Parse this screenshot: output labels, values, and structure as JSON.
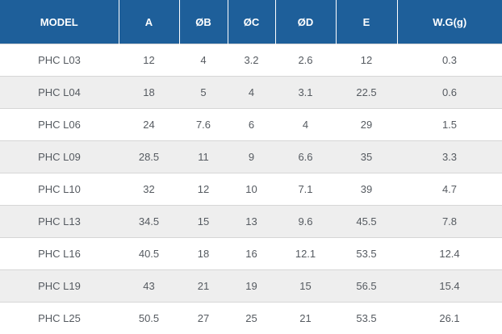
{
  "table": {
    "headers": [
      "MODEL",
      "A",
      "ØB",
      "ØC",
      "ØD",
      "E",
      "W.G(g)"
    ],
    "rows": [
      [
        "PHC L03",
        "12",
        "4",
        "3.2",
        "2.6",
        "12",
        "0.3"
      ],
      [
        "PHC L04",
        "18",
        "5",
        "4",
        "3.1",
        "22.5",
        "0.6"
      ],
      [
        "PHC L06",
        "24",
        "7.6",
        "6",
        "4",
        "29",
        "1.5"
      ],
      [
        "PHC L09",
        "28.5",
        "11",
        "9",
        "6.6",
        "35",
        "3.3"
      ],
      [
        "PHC L10",
        "32",
        "12",
        "10",
        "7.1",
        "39",
        "4.7"
      ],
      [
        "PHC L13",
        "34.5",
        "15",
        "13",
        "9.6",
        "45.5",
        "7.8"
      ],
      [
        "PHC L16",
        "40.5",
        "18",
        "16",
        "12.1",
        "53.5",
        "12.4"
      ],
      [
        "PHC L19",
        "43",
        "21",
        "19",
        "15",
        "56.5",
        "15.4"
      ],
      [
        "PHC L25",
        "50.5",
        "27",
        "25",
        "21",
        "53.5",
        "26.1"
      ]
    ]
  },
  "colors": {
    "header_bg": "#1e5f9a",
    "header_text": "#ffffff",
    "row_alt_bg": "#eeeeee",
    "cell_text": "#555a60"
  }
}
